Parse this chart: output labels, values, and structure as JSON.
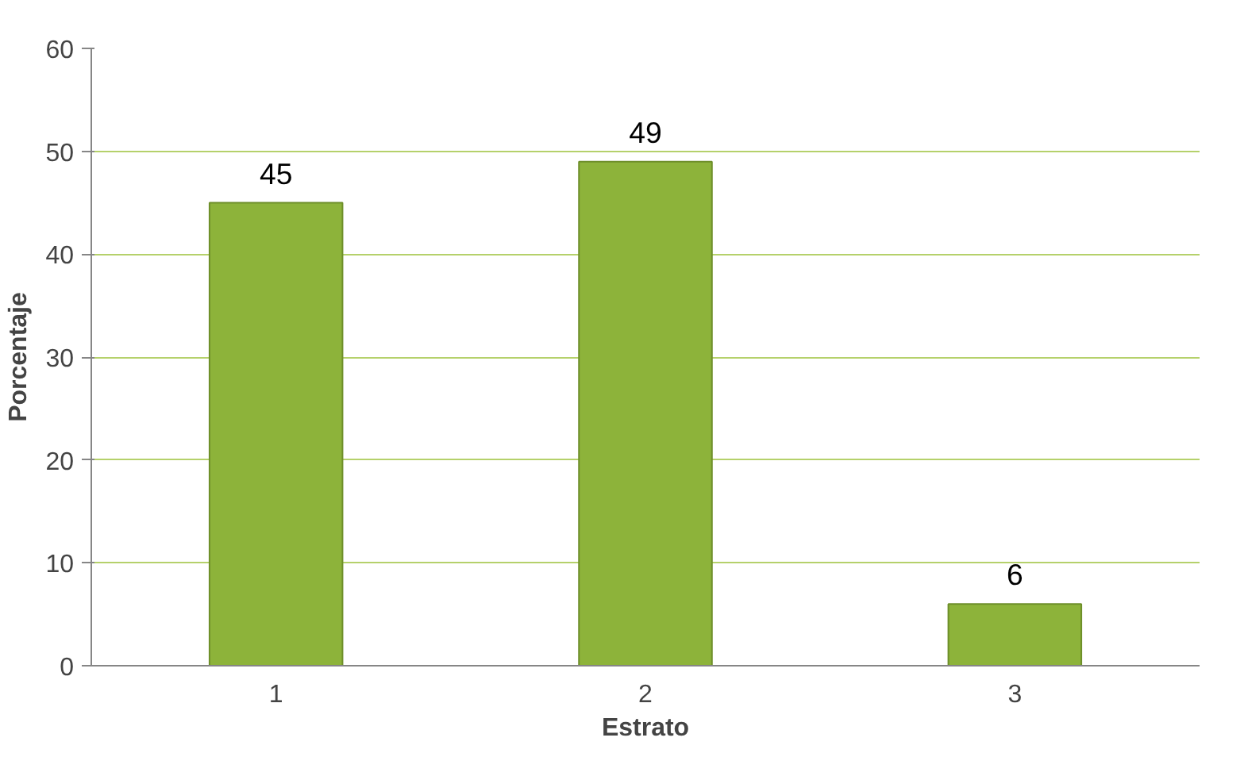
{
  "chart_data": {
    "type": "bar",
    "xlabel": "Estrato",
    "ylabel": "Porcentaje",
    "categories": [
      "1",
      "2",
      "3"
    ],
    "values": [
      45,
      49,
      6
    ],
    "color": "#8db33a",
    "ylim": [
      0,
      60
    ],
    "yticks": [
      0,
      10,
      20,
      30,
      40,
      50,
      60
    ],
    "grid": "y",
    "data_labels": true
  }
}
